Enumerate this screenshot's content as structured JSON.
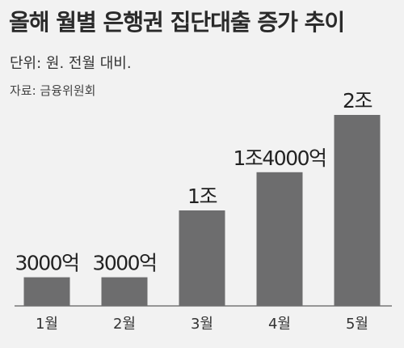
{
  "header": {
    "title": "올해 월별 은행권 집단대출 증가 추이",
    "unit": "단위: 원. 전월 대비.",
    "source": "자료: 금융위원회"
  },
  "chart_data": {
    "type": "bar",
    "title": "올해 월별 은행권 집단대출 증가 추이",
    "unit_note": "단위: 원. 전월 대비.",
    "source": "자료: 금융위원회",
    "categories": [
      "1월",
      "2월",
      "3월",
      "4월",
      "5월"
    ],
    "values": [
      300000000000,
      300000000000,
      1000000000000,
      1400000000000,
      2000000000000
    ],
    "value_labels": [
      "3000억",
      "3000억",
      "1조",
      "1조4000억",
      "2조"
    ],
    "bar_color": "#6d6d6e",
    "grid": false,
    "legend": "none"
  }
}
